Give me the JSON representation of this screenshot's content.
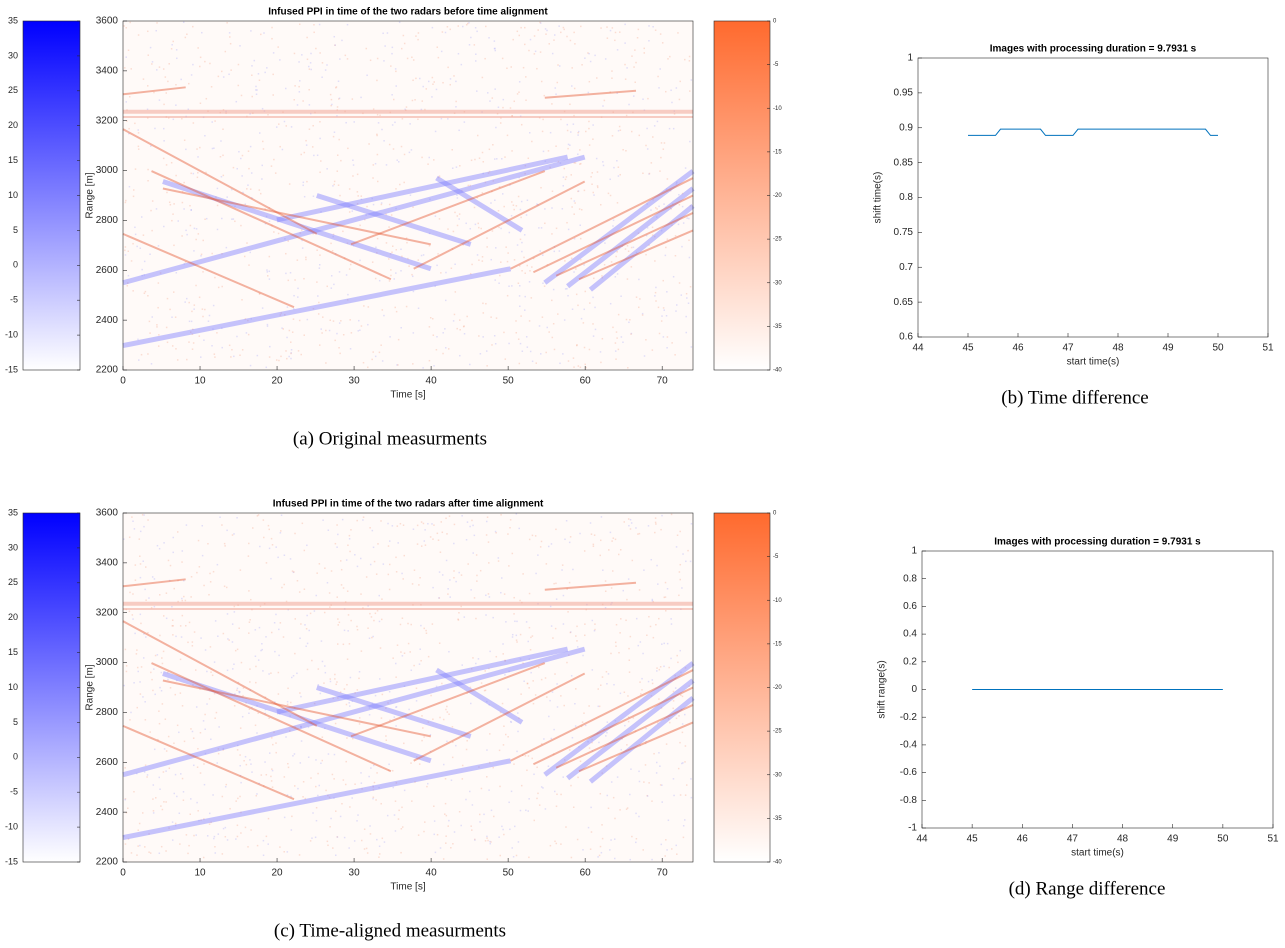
{
  "chart_data": [
    {
      "type": "heatmap",
      "title": "Infused PPI in time of the two radars before time alignment",
      "x_label": "Time [s]",
      "y_label": "Range [m]",
      "caption": "(a) Original measurments",
      "xlim": [
        0,
        74
      ],
      "xticks": [
        0,
        10,
        20,
        30,
        40,
        50,
        60,
        70
      ],
      "ylim": [
        2200,
        3600
      ],
      "yticks": [
        2200,
        2400,
        2600,
        2800,
        3000,
        3200,
        3400,
        3600
      ],
      "colorbars": [
        {
          "color": "#0000ff",
          "lim": [
            -15,
            35
          ],
          "ticks": [
            -15,
            -10,
            -5,
            0,
            5,
            10,
            15,
            20,
            25,
            30,
            35
          ]
        },
        {
          "color": "#ff6a2e",
          "lim": [
            -40,
            0
          ],
          "ticks": [
            -40,
            -35,
            -30,
            -25,
            -20,
            -15,
            -10,
            -5,
            0
          ]
        }
      ]
    },
    {
      "type": "heatmap",
      "title": "Infused PPI in time of the two radars after time alignment",
      "x_label": "Time [s]",
      "y_label": "Range [m]",
      "caption": "(c) Time-aligned measurments",
      "xlim": [
        0,
        74
      ],
      "xticks": [
        0,
        10,
        20,
        30,
        40,
        50,
        60,
        70
      ],
      "ylim": [
        2200,
        3600
      ],
      "yticks": [
        2200,
        2400,
        2600,
        2800,
        3000,
        3200,
        3400,
        3600
      ],
      "colorbars": [
        {
          "color": "#0000ff",
          "lim": [
            -15,
            35
          ],
          "ticks": [
            -15,
            -10,
            -5,
            0,
            5,
            10,
            15,
            20,
            25,
            30,
            35
          ]
        },
        {
          "color": "#ff6a2e",
          "lim": [
            -40,
            0
          ],
          "ticks": [
            -40,
            -35,
            -30,
            -25,
            -20,
            -15,
            -10,
            -5,
            0
          ]
        }
      ]
    },
    {
      "type": "line",
      "title": "Images with  processing duration = 9.7931 s",
      "x_label": "start time(s)",
      "y_label": "shift time(s)",
      "caption": "(b) Time difference",
      "color": "#0072bd",
      "x": [
        45,
        45.55,
        45.65,
        46.45,
        46.55,
        47.1,
        47.2,
        49.75,
        49.85,
        50
      ],
      "values": [
        0.889,
        0.889,
        0.898,
        0.898,
        0.889,
        0.889,
        0.898,
        0.898,
        0.889,
        0.889
      ],
      "xlim": [
        44,
        51
      ],
      "xticks": [
        44,
        45,
        46,
        47,
        48,
        49,
        50,
        51
      ],
      "ylim": [
        0.6,
        1
      ],
      "yticks": [
        0.6,
        0.65,
        0.7,
        0.75,
        0.8,
        0.85,
        0.9,
        0.95,
        1
      ]
    },
    {
      "type": "line",
      "title": "Images with  processing duration = 9.7931 s",
      "x_label": "start time(s)",
      "y_label": "shift range(s)",
      "caption": "(d) Range difference",
      "color": "#0072bd",
      "x": [
        45,
        50
      ],
      "values": [
        0,
        0
      ],
      "xlim": [
        44,
        51
      ],
      "xticks": [
        44,
        45,
        46,
        47,
        48,
        49,
        50,
        51
      ],
      "ylim": [
        -1,
        1
      ],
      "yticks": [
        -1,
        -0.8,
        -0.6,
        -0.4,
        -0.2,
        0,
        0.2,
        0.4,
        0.6,
        0.8,
        1
      ]
    }
  ]
}
